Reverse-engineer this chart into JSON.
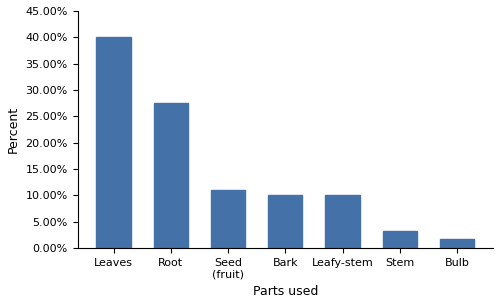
{
  "categories": [
    "Leaves",
    "Root",
    "Seed\n(fruit)",
    "Bark",
    "Leafy-stem",
    "Stem",
    "Bulb"
  ],
  "values": [
    40.0,
    27.5,
    11.0,
    10.0,
    10.0,
    3.2,
    1.8
  ],
  "bar_color": "#4472A8",
  "title": "",
  "xlabel": "Parts used",
  "ylabel": "Percent",
  "ylim": [
    0,
    45
  ],
  "yticks": [
    0,
    5,
    10,
    15,
    20,
    25,
    30,
    35,
    40,
    45
  ],
  "background_color": "#ffffff",
  "bar_width": 0.6
}
